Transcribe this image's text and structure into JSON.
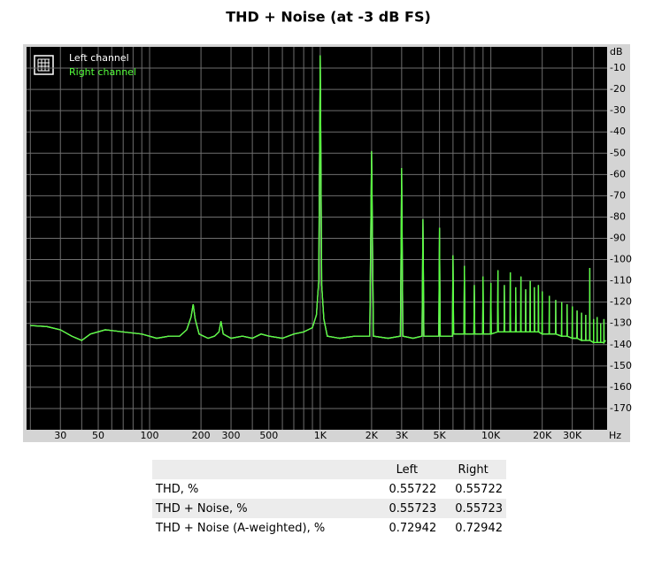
{
  "chart_data": {
    "type": "line",
    "title": "THD + Noise (at -3 dB FS)",
    "x_unit": "Hz",
    "y_unit": "dB",
    "xlog": true,
    "grid": true,
    "legend": "top-left",
    "xlim": [
      19,
      48000
    ],
    "ylim": [
      -180,
      0
    ],
    "xticks": [
      30,
      50,
      100,
      200,
      300,
      500,
      {
        "value": 1000,
        "label": "1K"
      },
      {
        "value": 2000,
        "label": "2K"
      },
      {
        "value": 3000,
        "label": "3K"
      },
      {
        "value": 5000,
        "label": "5K"
      },
      {
        "value": 10000,
        "label": "10K"
      },
      {
        "value": 20000,
        "label": "20K"
      },
      {
        "value": 30000,
        "label": "30K"
      }
    ],
    "xgrid_minor": [
      20,
      40,
      60,
      70,
      80,
      90,
      400,
      600,
      700,
      800,
      900,
      4000,
      6000,
      7000,
      8000,
      9000,
      40000
    ],
    "yticks": [
      -10,
      -20,
      -30,
      -40,
      -50,
      -60,
      -70,
      -80,
      -90,
      -100,
      -110,
      -120,
      -130,
      -140,
      -150,
      -160,
      -170
    ],
    "x": [
      20,
      25,
      30,
      35,
      40,
      45,
      55,
      70,
      90,
      110,
      130,
      150,
      165,
      175,
      180,
      185,
      195,
      220,
      240,
      255,
      262,
      270,
      300,
      350,
      400,
      450,
      500,
      600,
      700,
      800,
      900,
      950,
      980,
      1000,
      1020,
      1050,
      1100,
      1300,
      1600,
      1950,
      2000,
      2050,
      2500,
      2950,
      3000,
      3050,
      3500,
      3950,
      4000,
      4050,
      4950,
      5000,
      5050,
      5950,
      6000,
      6050,
      6950,
      7000,
      7050,
      7950,
      8000,
      8050,
      8950,
      9000,
      9050,
      9950,
      10000,
      10050,
      10950,
      11000,
      11050,
      11950,
      12000,
      12050,
      12950,
      13000,
      13050,
      13950,
      14000,
      14050,
      14950,
      15000,
      15050,
      15950,
      16000,
      16050,
      16950,
      17000,
      17050,
      17950,
      18000,
      18050,
      18950,
      19000,
      19050,
      19950,
      20000,
      20050,
      21950,
      22000,
      22050,
      23950,
      24000,
      24050,
      25950,
      26000,
      26050,
      27950,
      28000,
      28050,
      29950,
      30000,
      30050,
      31950,
      32000,
      32050,
      33950,
      34000,
      34050,
      35950,
      36000,
      36050,
      37950,
      38000,
      38050,
      39950,
      40000,
      40050,
      41950,
      42000,
      42050,
      43950,
      44000,
      44050,
      45950,
      46000,
      46050,
      47000
    ],
    "series": [
      {
        "name": "Left channel",
        "color": "#ffffff",
        "values": [
          -131,
          -131.5,
          -133,
          -136,
          -138,
          -135,
          -133,
          -134,
          -135,
          -137,
          -136,
          -136,
          -133,
          -127,
          -121,
          -128,
          -135,
          -137,
          -136,
          -134,
          -129,
          -135,
          -137,
          -136,
          -137,
          -135,
          -136,
          -137,
          -135,
          -134,
          -132,
          -126,
          -110,
          -4,
          -112,
          -128,
          -136,
          -137,
          -136,
          -136,
          -49,
          -136,
          -137,
          -136,
          -57,
          -136,
          -137,
          -136,
          -81,
          -136,
          -136,
          -85,
          -136,
          -136,
          -98,
          -135,
          -135,
          -103,
          -135,
          -135,
          -112,
          -135,
          -135,
          -108,
          -135,
          -135,
          -111,
          -135,
          -134,
          -105,
          -134,
          -134,
          -112,
          -134,
          -134,
          -106,
          -134,
          -134,
          -113,
          -134,
          -134,
          -108,
          -134,
          -134,
          -114,
          -134,
          -134,
          -110,
          -134,
          -134,
          -113,
          -134,
          -134,
          -112,
          -134,
          -135,
          -115,
          -135,
          -135,
          -117,
          -135,
          -135,
          -119,
          -135,
          -136,
          -120,
          -136,
          -136,
          -121,
          -136,
          -137,
          -122,
          -137,
          -137,
          -124,
          -137,
          -138,
          -125,
          -138,
          -138,
          -126,
          -138,
          -138,
          -104,
          -138,
          -139,
          -128,
          -139,
          -139,
          -127,
          -139,
          -139,
          -130,
          -139,
          -139,
          -128,
          -139,
          -138
        ]
      },
      {
        "name": "Right channel",
        "color": "#55ff3c",
        "values": [
          -131,
          -131.5,
          -133,
          -136,
          -138,
          -135,
          -133,
          -134,
          -135,
          -137,
          -136,
          -136,
          -133,
          -127,
          -121,
          -128,
          -135,
          -137,
          -136,
          -134,
          -129,
          -135,
          -137,
          -136,
          -137,
          -135,
          -136,
          -137,
          -135,
          -134,
          -132,
          -126,
          -110,
          -4,
          -112,
          -128,
          -136,
          -137,
          -136,
          -136,
          -49,
          -136,
          -137,
          -136,
          -57,
          -136,
          -137,
          -136,
          -81,
          -136,
          -136,
          -85,
          -136,
          -136,
          -98,
          -135,
          -135,
          -103,
          -135,
          -135,
          -112,
          -135,
          -135,
          -108,
          -135,
          -135,
          -111,
          -135,
          -134,
          -105,
          -134,
          -134,
          -112,
          -134,
          -134,
          -106,
          -134,
          -134,
          -113,
          -134,
          -134,
          -108,
          -134,
          -134,
          -114,
          -134,
          -134,
          -110,
          -134,
          -134,
          -113,
          -134,
          -134,
          -112,
          -134,
          -135,
          -115,
          -135,
          -135,
          -117,
          -135,
          -135,
          -119,
          -135,
          -136,
          -120,
          -136,
          -136,
          -121,
          -136,
          -137,
          -122,
          -137,
          -137,
          -124,
          -137,
          -138,
          -125,
          -138,
          -138,
          -126,
          -138,
          -138,
          -104,
          -138,
          -139,
          -128,
          -139,
          -139,
          -127,
          -139,
          -139,
          -130,
          -139,
          -139,
          -128,
          -139,
          -138
        ]
      }
    ]
  },
  "table": {
    "header": [
      "Left",
      "Right"
    ],
    "rows": [
      {
        "label": "THD, %",
        "values": [
          0.55722,
          0.55722
        ]
      },
      {
        "label": "THD + Noise, %",
        "values": [
          0.55723,
          0.55723
        ]
      },
      {
        "label": "THD + Noise (A-weighted), %",
        "values": [
          0.72942,
          0.72942
        ]
      }
    ]
  }
}
